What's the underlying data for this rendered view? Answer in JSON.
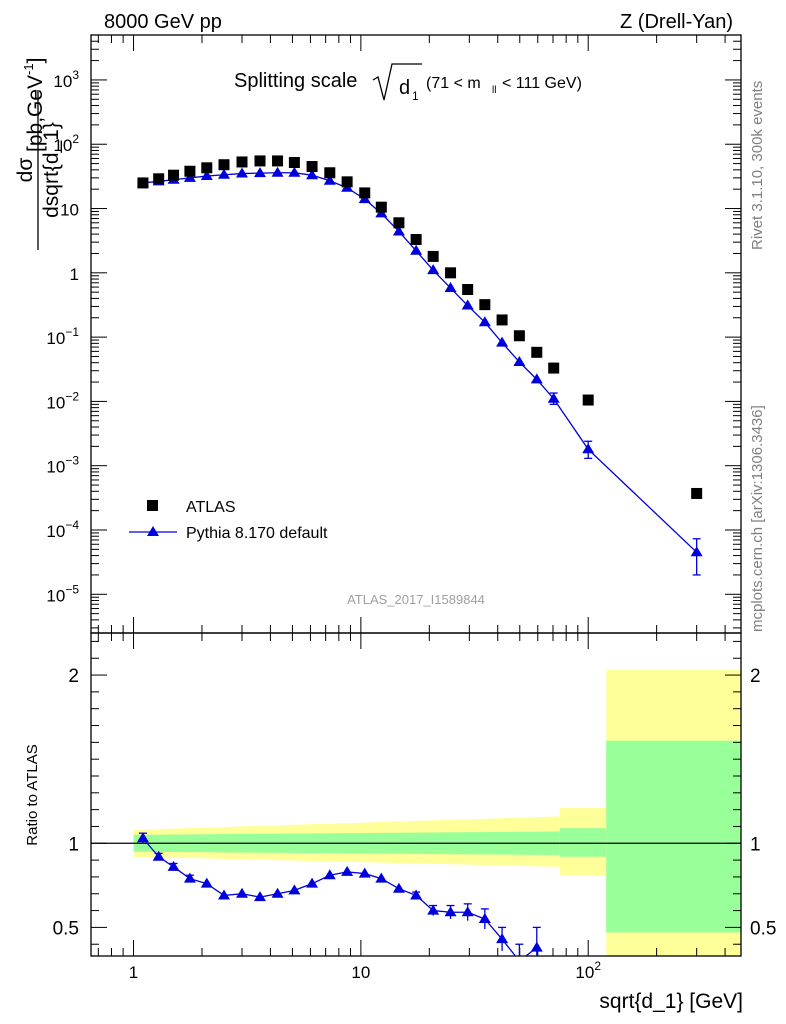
{
  "header": {
    "left": "8000 GeV pp",
    "right": "Z (Drell-Yan)"
  },
  "side_labels": {
    "rivet": "Rivet 3.1.10,  300k events",
    "mcplots": "mcplots.cern.ch [arXiv:1306.3436]"
  },
  "chart_data": [
    {
      "type": "scatter",
      "title_prefix": "Splitting scale",
      "title_var": "d",
      "title_var_sub": "1",
      "title_cut_left": "(71 < m",
      "title_cut_sub": "ll",
      "title_cut_right": " < 111 GeV)",
      "ylabel_num": "dσ",
      "ylabel_den": "dsqrt{d_1}",
      "ylabel_units": "[pb,GeV",
      "ylabel_units_sup": "-1",
      "ylabel_units_close": "]",
      "yscale": "log",
      "xscale": "log",
      "ylim": [
        2.5e-06,
        5000
      ],
      "xlim": [
        0.65,
        470
      ],
      "yticks": [
        {
          "value": 1e-05,
          "base": "10",
          "exp": "−5"
        },
        {
          "value": 0.0001,
          "base": "10",
          "exp": "−4"
        },
        {
          "value": 0.001,
          "base": "10",
          "exp": "−3"
        },
        {
          "value": 0.01,
          "base": "10",
          "exp": "−2"
        },
        {
          "value": 0.1,
          "base": "10",
          "exp": "−1"
        },
        {
          "value": 1,
          "base": "1",
          "exp": ""
        },
        {
          "value": 10,
          "base": "10",
          "exp": ""
        },
        {
          "value": 100,
          "base": "10",
          "exp": "2"
        },
        {
          "value": 1000,
          "base": "10",
          "exp": "3"
        }
      ],
      "watermark": "ATLAS_2017_I1589844",
      "legend": {
        "position": "bottom-left",
        "data_label": "ATLAS",
        "mc_label": "Pythia 8.170 default"
      },
      "series": [
        {
          "name": "ATLAS",
          "color": "#000000",
          "marker": "square",
          "x": [
            1.1,
            1.29,
            1.5,
            1.77,
            2.1,
            2.5,
            3.0,
            3.6,
            4.3,
            5.1,
            6.1,
            7.3,
            8.7,
            10.4,
            12.3,
            14.7,
            17.5,
            20.8,
            24.8,
            29.5,
            35.1,
            41.8,
            49.8,
            59.4,
            70.5,
            100,
            300
          ],
          "y": [
            25,
            29,
            33,
            38,
            43,
            48,
            53,
            55,
            55,
            52,
            45,
            36,
            26,
            17.5,
            10.5,
            6.0,
            3.3,
            1.8,
            1.0,
            0.55,
            0.32,
            0.185,
            0.105,
            0.058,
            0.033,
            0.0105,
            0.00037
          ]
        },
        {
          "name": "Pythia 8.170 default",
          "color": "#0000dd",
          "marker": "triangle",
          "x": [
            1.1,
            1.29,
            1.5,
            1.77,
            2.1,
            2.5,
            3.0,
            3.6,
            4.3,
            5.1,
            6.1,
            7.3,
            8.7,
            10.4,
            12.3,
            14.7,
            17.5,
            20.8,
            24.8,
            29.5,
            35.1,
            41.8,
            49.8,
            59.4,
            70.5,
            100,
            300
          ],
          "y": [
            25,
            26.5,
            28,
            30,
            32,
            33.5,
            35,
            35.5,
            36,
            36,
            33,
            27,
            21,
            14,
            8.4,
            4.4,
            2.2,
            1.1,
            0.58,
            0.31,
            0.17,
            0.082,
            0.041,
            0.022,
            0.011,
            0.0018,
            4.5e-05
          ],
          "err_hi": [
            0,
            0,
            0,
            0,
            0,
            0,
            0,
            0,
            0,
            0,
            0,
            0,
            0,
            0,
            0,
            0,
            0,
            0,
            0,
            0,
            0,
            0,
            0,
            0,
            0.0025,
            0.0006,
            2.8e-05
          ],
          "err_lo": [
            0,
            0,
            0,
            0,
            0,
            0,
            0,
            0,
            0,
            0,
            0,
            0,
            0,
            0,
            0,
            0,
            0,
            0,
            0,
            0,
            0,
            0,
            0,
            0,
            0.002,
            0.0005,
            2.5e-05
          ]
        }
      ]
    },
    {
      "type": "line",
      "ylabel": "Ratio to ATLAS",
      "xlabel": "sqrt{d_1} [GeV]",
      "xscale": "log",
      "xlim": [
        0.65,
        470
      ],
      "ylim": [
        0.33,
        2.25
      ],
      "yticks": [
        0.5,
        1,
        2
      ],
      "xticks": [
        {
          "value": 1,
          "label": "1",
          "exp": ""
        },
        {
          "value": 10,
          "label": "10",
          "exp": ""
        },
        {
          "value": 100,
          "label": "10",
          "exp": "2"
        }
      ],
      "band_colors": {
        "stat": "#99ff99",
        "total": "#ffff99"
      },
      "bands": [
        {
          "x0": 1.0,
          "x1": 75,
          "inner_up_start": 1.05,
          "inner_up_end": 1.07,
          "inner_lo_start": 0.95,
          "inner_lo_end": 0.93,
          "outer_up_start": 1.08,
          "outer_up_end": 1.16,
          "outer_lo_start": 0.92,
          "outer_lo_end": 0.86
        },
        {
          "x0": 75,
          "x1": 120,
          "inner_up": 1.09,
          "inner_lo": 0.92,
          "outer_up": 1.21,
          "outer_lo": 0.81
        },
        {
          "x0": 120,
          "x1": 470,
          "inner_up": 1.61,
          "inner_lo": 0.47,
          "outer_up": 2.03,
          "outer_lo": 0.3
        }
      ],
      "series": [
        {
          "name": "Pythia 8.170 default",
          "color": "#0000dd",
          "x": [
            1.1,
            1.29,
            1.5,
            1.77,
            2.1,
            2.5,
            3.0,
            3.6,
            4.3,
            5.1,
            6.1,
            7.3,
            8.7,
            10.4,
            12.3,
            14.7,
            17.5,
            20.8,
            24.8,
            29.5,
            35.1,
            41.8,
            49.8,
            59.4
          ],
          "y": [
            1.03,
            0.92,
            0.86,
            0.79,
            0.76,
            0.69,
            0.7,
            0.68,
            0.7,
            0.72,
            0.76,
            0.81,
            0.83,
            0.82,
            0.79,
            0.73,
            0.69,
            0.6,
            0.59,
            0.59,
            0.55,
            0.43,
            0.3,
            0.38
          ],
          "err": [
            0.03,
            0.02,
            0.02,
            0.02,
            0.015,
            0.015,
            0.015,
            0.015,
            0.015,
            0.015,
            0.015,
            0.015,
            0.015,
            0.015,
            0.015,
            0.015,
            0.02,
            0.03,
            0.04,
            0.05,
            0.06,
            0.07,
            0.1,
            0.12
          ]
        }
      ]
    }
  ]
}
